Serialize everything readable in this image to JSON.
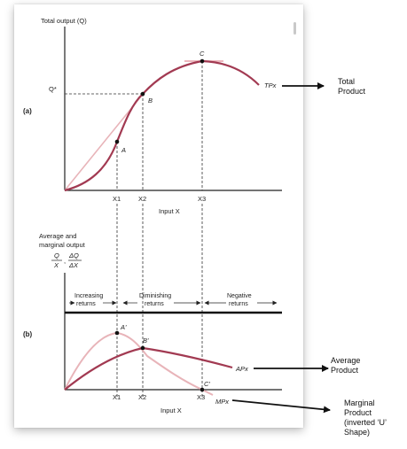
{
  "colors": {
    "total_curve": "#a23a52",
    "mp_curve": "#e8b4b9",
    "axis": "#222222",
    "tangent": "#e5a0a8",
    "dashed": "#333333",
    "annotation": "#111111"
  },
  "panel_a": {
    "label": "(a)",
    "y_axis_label": "Total output (Q)",
    "q_star": "Q*",
    "curve_label": "TPx",
    "point_a": "A",
    "point_b": "B",
    "point_c": "C",
    "x_ticks": [
      "X1",
      "X2",
      "X3"
    ],
    "x_axis_label": "Input X"
  },
  "panel_b": {
    "label": "(b)",
    "y_axis_label_line1": "Average and",
    "y_axis_label_line2": "marginal output",
    "frac_q": "Q",
    "frac_x": "X",
    "frac_dq": "ΔQ",
    "frac_dx": "ΔX",
    "stage_increasing_1": "Increasing",
    "stage_increasing_2": "returns",
    "stage_diminishing_1": "Diminishing",
    "stage_diminishing_2": "returns",
    "stage_negative_1": "Negative",
    "stage_negative_2": "returns",
    "point_a_prime": "A'",
    "point_b_prime": "B'",
    "point_c_prime": "C'",
    "ap_label": "APx",
    "mp_label": "MPx",
    "x_ticks": [
      "X1",
      "X2",
      "X3"
    ],
    "x_axis_label": "Input X"
  },
  "annotations": {
    "total_product_1": "Total",
    "total_product_2": "Product",
    "average_product_1": "Average",
    "average_product_2": "Product",
    "marginal_1": "Marginal",
    "marginal_2": "Product",
    "marginal_3": "(inverted ‘U’",
    "marginal_4": "Shape)"
  }
}
